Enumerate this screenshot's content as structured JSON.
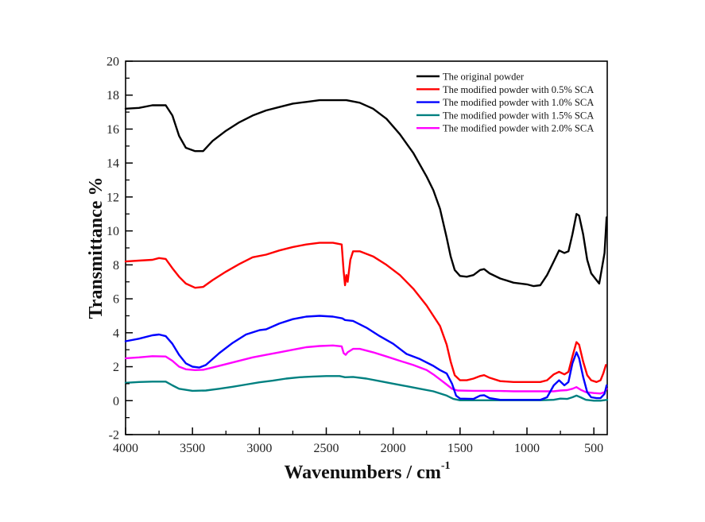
{
  "chart_data": {
    "type": "line",
    "title": "",
    "xlabel": "Wavenumbers / cm",
    "xlabel_superscript": "-1",
    "ylabel": "Transmittance %",
    "xlim": [
      4000,
      400
    ],
    "ylim": [
      -2,
      20
    ],
    "x_reversed": true,
    "x_ticks": [
      4000,
      3500,
      3000,
      2500,
      2000,
      1500,
      1000,
      500
    ],
    "x_tick_labels": [
      "4000",
      "3500",
      "3000",
      "2500",
      "2000",
      "1500",
      "1000",
      "500"
    ],
    "y_ticks": [
      -2,
      0,
      2,
      4,
      6,
      8,
      10,
      12,
      14,
      16,
      18,
      20
    ],
    "y_tick_labels": [
      "-2",
      "0",
      "2",
      "4",
      "6",
      "8",
      "10",
      "12",
      "14",
      "16",
      "18",
      "20"
    ],
    "grid": false,
    "legend_position": "top-right",
    "series": [
      {
        "name": "The original powder",
        "color": "#000000",
        "points": [
          [
            4000,
            17.2
          ],
          [
            3900,
            17.25
          ],
          [
            3800,
            17.4
          ],
          [
            3700,
            17.4
          ],
          [
            3650,
            16.8
          ],
          [
            3600,
            15.6
          ],
          [
            3550,
            14.9
          ],
          [
            3480,
            14.7
          ],
          [
            3420,
            14.7
          ],
          [
            3350,
            15.3
          ],
          [
            3250,
            15.9
          ],
          [
            3150,
            16.4
          ],
          [
            3050,
            16.8
          ],
          [
            2950,
            17.1
          ],
          [
            2850,
            17.3
          ],
          [
            2750,
            17.5
          ],
          [
            2650,
            17.6
          ],
          [
            2550,
            17.7
          ],
          [
            2450,
            17.7
          ],
          [
            2350,
            17.7
          ],
          [
            2250,
            17.55
          ],
          [
            2150,
            17.2
          ],
          [
            2050,
            16.6
          ],
          [
            1950,
            15.7
          ],
          [
            1850,
            14.6
          ],
          [
            1750,
            13.2
          ],
          [
            1700,
            12.4
          ],
          [
            1650,
            11.3
          ],
          [
            1600,
            9.6
          ],
          [
            1570,
            8.5
          ],
          [
            1540,
            7.7
          ],
          [
            1500,
            7.35
          ],
          [
            1450,
            7.3
          ],
          [
            1400,
            7.4
          ],
          [
            1350,
            7.7
          ],
          [
            1320,
            7.75
          ],
          [
            1280,
            7.5
          ],
          [
            1200,
            7.2
          ],
          [
            1100,
            6.95
          ],
          [
            1000,
            6.85
          ],
          [
            950,
            6.75
          ],
          [
            900,
            6.8
          ],
          [
            850,
            7.4
          ],
          [
            800,
            8.2
          ],
          [
            760,
            8.85
          ],
          [
            720,
            8.7
          ],
          [
            690,
            8.8
          ],
          [
            660,
            9.8
          ],
          [
            630,
            11.0
          ],
          [
            610,
            10.9
          ],
          [
            580,
            9.8
          ],
          [
            550,
            8.3
          ],
          [
            520,
            7.5
          ],
          [
            480,
            7.1
          ],
          [
            460,
            6.9
          ],
          [
            440,
            7.8
          ],
          [
            420,
            8.7
          ],
          [
            405,
            10.8
          ]
        ]
      },
      {
        "name": "The modified powder with 0.5% SCA",
        "color": "#ff0000",
        "points": [
          [
            4000,
            8.2
          ],
          [
            3900,
            8.25
          ],
          [
            3800,
            8.3
          ],
          [
            3750,
            8.4
          ],
          [
            3700,
            8.35
          ],
          [
            3650,
            7.8
          ],
          [
            3600,
            7.3
          ],
          [
            3550,
            6.9
          ],
          [
            3480,
            6.65
          ],
          [
            3420,
            6.7
          ],
          [
            3350,
            7.1
          ],
          [
            3250,
            7.6
          ],
          [
            3150,
            8.05
          ],
          [
            3050,
            8.45
          ],
          [
            2950,
            8.6
          ],
          [
            2850,
            8.85
          ],
          [
            2750,
            9.05
          ],
          [
            2650,
            9.2
          ],
          [
            2550,
            9.3
          ],
          [
            2450,
            9.3
          ],
          [
            2385,
            9.2
          ],
          [
            2370,
            7.6
          ],
          [
            2360,
            6.8
          ],
          [
            2350,
            7.4
          ],
          [
            2340,
            7.0
          ],
          [
            2320,
            8.3
          ],
          [
            2300,
            8.8
          ],
          [
            2250,
            8.8
          ],
          [
            2150,
            8.5
          ],
          [
            2050,
            8.0
          ],
          [
            1950,
            7.4
          ],
          [
            1850,
            6.6
          ],
          [
            1750,
            5.6
          ],
          [
            1700,
            5.0
          ],
          [
            1650,
            4.4
          ],
          [
            1600,
            3.3
          ],
          [
            1570,
            2.3
          ],
          [
            1540,
            1.5
          ],
          [
            1500,
            1.2
          ],
          [
            1450,
            1.2
          ],
          [
            1400,
            1.3
          ],
          [
            1350,
            1.45
          ],
          [
            1320,
            1.5
          ],
          [
            1280,
            1.35
          ],
          [
            1200,
            1.15
          ],
          [
            1100,
            1.1
          ],
          [
            1000,
            1.1
          ],
          [
            900,
            1.1
          ],
          [
            850,
            1.2
          ],
          [
            800,
            1.55
          ],
          [
            760,
            1.7
          ],
          [
            720,
            1.55
          ],
          [
            690,
            1.7
          ],
          [
            660,
            2.6
          ],
          [
            630,
            3.45
          ],
          [
            610,
            3.3
          ],
          [
            580,
            2.3
          ],
          [
            550,
            1.5
          ],
          [
            520,
            1.2
          ],
          [
            480,
            1.1
          ],
          [
            450,
            1.2
          ],
          [
            430,
            1.6
          ],
          [
            410,
            2.1
          ]
        ]
      },
      {
        "name": "The modified powder with 1.0% SCA",
        "color": "#0000ff",
        "points": [
          [
            4000,
            3.5
          ],
          [
            3900,
            3.65
          ],
          [
            3800,
            3.85
          ],
          [
            3750,
            3.9
          ],
          [
            3700,
            3.8
          ],
          [
            3650,
            3.35
          ],
          [
            3600,
            2.7
          ],
          [
            3550,
            2.2
          ],
          [
            3500,
            2.0
          ],
          [
            3450,
            1.95
          ],
          [
            3400,
            2.1
          ],
          [
            3300,
            2.8
          ],
          [
            3200,
            3.4
          ],
          [
            3100,
            3.9
          ],
          [
            3000,
            4.15
          ],
          [
            2950,
            4.2
          ],
          [
            2850,
            4.55
          ],
          [
            2750,
            4.8
          ],
          [
            2650,
            4.95
          ],
          [
            2550,
            5.0
          ],
          [
            2450,
            4.95
          ],
          [
            2380,
            4.85
          ],
          [
            2360,
            4.75
          ],
          [
            2300,
            4.7
          ],
          [
            2200,
            4.3
          ],
          [
            2100,
            3.8
          ],
          [
            2000,
            3.35
          ],
          [
            1900,
            2.75
          ],
          [
            1800,
            2.45
          ],
          [
            1700,
            2.05
          ],
          [
            1650,
            1.8
          ],
          [
            1600,
            1.6
          ],
          [
            1560,
            1.0
          ],
          [
            1530,
            0.3
          ],
          [
            1500,
            0.12
          ],
          [
            1400,
            0.1
          ],
          [
            1350,
            0.3
          ],
          [
            1320,
            0.32
          ],
          [
            1280,
            0.15
          ],
          [
            1200,
            0.05
          ],
          [
            1100,
            0.05
          ],
          [
            1000,
            0.05
          ],
          [
            900,
            0.05
          ],
          [
            850,
            0.2
          ],
          [
            800,
            0.9
          ],
          [
            760,
            1.2
          ],
          [
            720,
            0.9
          ],
          [
            690,
            1.1
          ],
          [
            660,
            2.2
          ],
          [
            630,
            2.85
          ],
          [
            610,
            2.5
          ],
          [
            580,
            1.4
          ],
          [
            550,
            0.5
          ],
          [
            520,
            0.2
          ],
          [
            480,
            0.15
          ],
          [
            450,
            0.15
          ],
          [
            420,
            0.4
          ],
          [
            405,
            0.9
          ]
        ]
      },
      {
        "name": "The modified powder with 1.5% SCA",
        "color": "#008080",
        "points": [
          [
            4000,
            1.05
          ],
          [
            3900,
            1.1
          ],
          [
            3800,
            1.12
          ],
          [
            3700,
            1.12
          ],
          [
            3650,
            0.9
          ],
          [
            3600,
            0.7
          ],
          [
            3500,
            0.58
          ],
          [
            3400,
            0.6
          ],
          [
            3300,
            0.7
          ],
          [
            3200,
            0.82
          ],
          [
            3100,
            0.95
          ],
          [
            3000,
            1.08
          ],
          [
            2900,
            1.18
          ],
          [
            2800,
            1.3
          ],
          [
            2700,
            1.38
          ],
          [
            2600,
            1.42
          ],
          [
            2500,
            1.45
          ],
          [
            2400,
            1.45
          ],
          [
            2360,
            1.38
          ],
          [
            2300,
            1.4
          ],
          [
            2200,
            1.3
          ],
          [
            2100,
            1.15
          ],
          [
            2000,
            1.0
          ],
          [
            1900,
            0.85
          ],
          [
            1800,
            0.7
          ],
          [
            1700,
            0.55
          ],
          [
            1600,
            0.3
          ],
          [
            1550,
            0.1
          ],
          [
            1500,
            0.02
          ],
          [
            1400,
            0.02
          ],
          [
            1300,
            0.02
          ],
          [
            1200,
            0.02
          ],
          [
            1100,
            0.02
          ],
          [
            1000,
            0.02
          ],
          [
            900,
            0.02
          ],
          [
            800,
            0.05
          ],
          [
            750,
            0.12
          ],
          [
            700,
            0.1
          ],
          [
            660,
            0.2
          ],
          [
            630,
            0.3
          ],
          [
            600,
            0.2
          ],
          [
            560,
            0.05
          ],
          [
            500,
            0.0
          ],
          [
            450,
            0.0
          ],
          [
            400,
            0.05
          ]
        ]
      },
      {
        "name": "The modified powder with 2.0% SCA",
        "color": "#ff00ff",
        "points": [
          [
            4000,
            2.5
          ],
          [
            3900,
            2.55
          ],
          [
            3800,
            2.62
          ],
          [
            3700,
            2.6
          ],
          [
            3650,
            2.35
          ],
          [
            3600,
            2.0
          ],
          [
            3550,
            1.85
          ],
          [
            3480,
            1.8
          ],
          [
            3420,
            1.82
          ],
          [
            3350,
            1.95
          ],
          [
            3250,
            2.15
          ],
          [
            3150,
            2.35
          ],
          [
            3050,
            2.55
          ],
          [
            2950,
            2.7
          ],
          [
            2850,
            2.85
          ],
          [
            2750,
            3.0
          ],
          [
            2650,
            3.15
          ],
          [
            2550,
            3.22
          ],
          [
            2450,
            3.25
          ],
          [
            2385,
            3.2
          ],
          [
            2370,
            2.8
          ],
          [
            2355,
            2.7
          ],
          [
            2340,
            2.85
          ],
          [
            2300,
            3.05
          ],
          [
            2250,
            3.05
          ],
          [
            2150,
            2.85
          ],
          [
            2050,
            2.6
          ],
          [
            1950,
            2.35
          ],
          [
            1850,
            2.1
          ],
          [
            1750,
            1.8
          ],
          [
            1700,
            1.55
          ],
          [
            1650,
            1.25
          ],
          [
            1600,
            0.95
          ],
          [
            1560,
            0.7
          ],
          [
            1520,
            0.6
          ],
          [
            1400,
            0.58
          ],
          [
            1300,
            0.58
          ],
          [
            1200,
            0.57
          ],
          [
            1100,
            0.55
          ],
          [
            1000,
            0.55
          ],
          [
            900,
            0.55
          ],
          [
            800,
            0.55
          ],
          [
            750,
            0.6
          ],
          [
            700,
            0.62
          ],
          [
            660,
            0.7
          ],
          [
            630,
            0.8
          ],
          [
            600,
            0.65
          ],
          [
            560,
            0.5
          ],
          [
            500,
            0.45
          ],
          [
            450,
            0.42
          ],
          [
            420,
            0.5
          ],
          [
            405,
            0.7
          ]
        ]
      }
    ]
  }
}
